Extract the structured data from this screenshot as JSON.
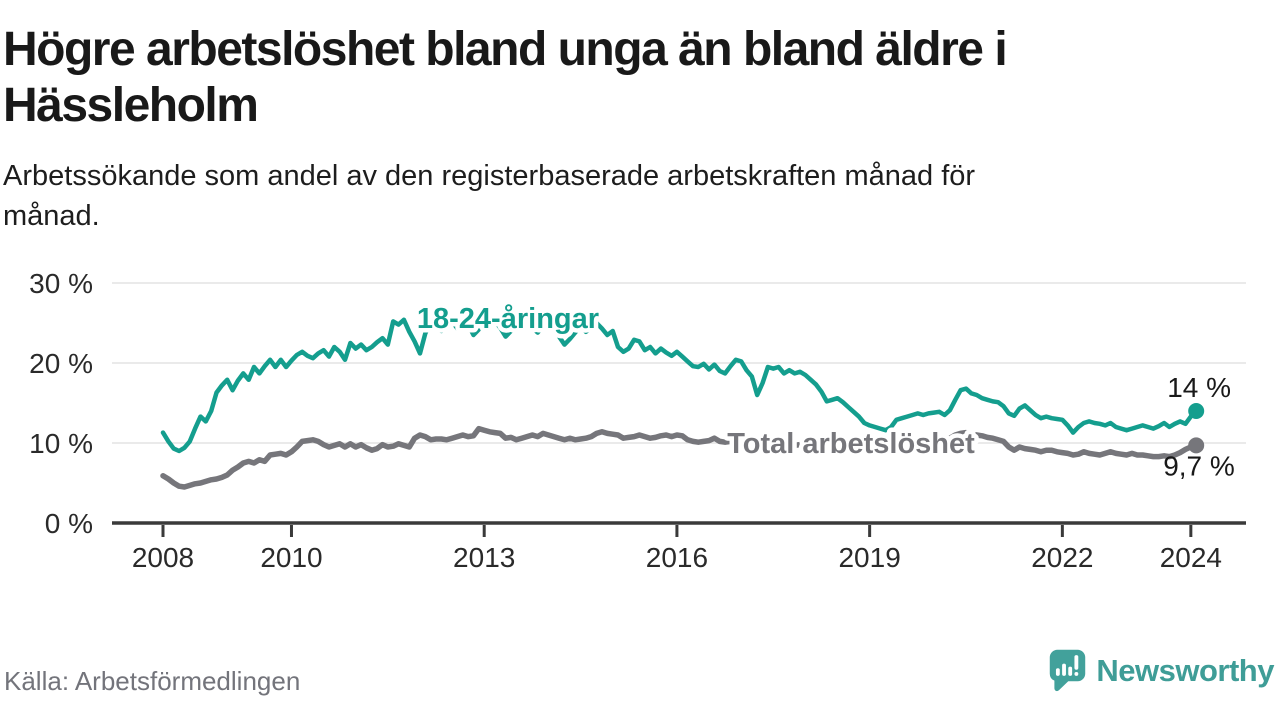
{
  "header": {
    "title_lines": [
      "Högre arbetslöshet bland unga än bland äldre i",
      "Hässleholm"
    ],
    "subtitle_lines": [
      "Arbetssökande som andel av den registerbaserade arbetskraften månad för",
      "månad."
    ]
  },
  "footer": {
    "source": "Källa: Arbetsförmedlingen",
    "brand_name": "Newsworthy"
  },
  "colors": {
    "young_line": "#149e8e",
    "total_line": "#76767b",
    "grid": "#e4e4e4",
    "axis": "#3a3a3a",
    "tick_text": "#2a2a2a",
    "value_label_text": "#191919",
    "brand_teal": "#42a19b",
    "source_text": "#73747b"
  },
  "chart_data": {
    "type": "line",
    "title": "Högre arbetslöshet bland unga än bland äldre i Hässleholm",
    "subtitle": "Arbetssökande som andel av den registerbaserade arbetskraften månad för månad.",
    "x_unit": "month",
    "x_start": "2008-01",
    "x_end": "2024-02",
    "x_tick_years": [
      2008,
      2010,
      2013,
      2016,
      2019,
      2022,
      2024
    ],
    "y_ticks": [
      0,
      10,
      20,
      30
    ],
    "y_tick_labels": [
      "0 %",
      "10 %",
      "20 %",
      "30 %"
    ],
    "ylim": [
      0,
      32
    ],
    "grid": "horizontal",
    "legend_position": "inline-labels",
    "source": "Källa: Arbetsförmedlingen",
    "series": [
      {
        "name": "18-24-åringar",
        "color": "#149e8e",
        "end_label": "14 %",
        "end_value": 14.0,
        "label_pos": {
          "year": 2013.37,
          "value": 25.6
        },
        "end_label_offset": [
          -29,
          -14
        ],
        "values": [
          11.3,
          10.2,
          9.3,
          9.0,
          9.4,
          10.2,
          11.8,
          13.3,
          12.7,
          14.0,
          16.3,
          17.2,
          17.9,
          16.6,
          17.8,
          18.7,
          17.9,
          19.5,
          18.7,
          19.6,
          20.4,
          19.5,
          20.4,
          19.5,
          20.3,
          21.0,
          21.4,
          20.9,
          20.6,
          21.2,
          21.6,
          20.8,
          22.0,
          21.4,
          20.4,
          22.5,
          21.8,
          22.3,
          21.6,
          22.0,
          22.6,
          23.1,
          22.3,
          25.2,
          24.8,
          25.4,
          23.9,
          22.7,
          21.2,
          23.7,
          25.0,
          24.4,
          24.0,
          24.6,
          25.2,
          24.3,
          25.4,
          24.8,
          23.5,
          24.2,
          25.3,
          25.8,
          25.2,
          24.4,
          23.3,
          24.0,
          24.8,
          24.2,
          25.0,
          24.4,
          23.8,
          24.6,
          25.4,
          24.8,
          23.3,
          22.3,
          23.0,
          23.8,
          24.6,
          23.9,
          24.4,
          25.0,
          24.3,
          23.5,
          24.0,
          22.0,
          21.4,
          21.8,
          22.9,
          22.7,
          21.6,
          22.0,
          21.2,
          21.8,
          21.3,
          20.9,
          21.4,
          20.8,
          20.2,
          19.6,
          19.5,
          19.9,
          19.2,
          19.8,
          19.0,
          18.7,
          19.6,
          20.4,
          20.2,
          19.1,
          18.3,
          16.0,
          17.5,
          19.5,
          19.3,
          19.5,
          18.7,
          19.1,
          18.7,
          18.9,
          18.5,
          17.9,
          17.3,
          16.4,
          15.2,
          15.4,
          15.6,
          15.1,
          14.5,
          13.9,
          13.3,
          12.5,
          12.2,
          12.0,
          11.8,
          11.6,
          12.0,
          12.9,
          13.1,
          13.3,
          13.5,
          13.7,
          13.5,
          13.7,
          13.8,
          13.9,
          13.5,
          14.1,
          15.4,
          16.6,
          16.8,
          16.2,
          16.0,
          15.6,
          15.4,
          15.2,
          15.1,
          14.6,
          13.7,
          13.4,
          14.3,
          14.7,
          14.1,
          13.5,
          13.1,
          13.3,
          13.1,
          13.0,
          12.9,
          12.2,
          11.3,
          12.0,
          12.5,
          12.7,
          12.5,
          12.4,
          12.2,
          12.5,
          12.0,
          11.8,
          11.6,
          11.8,
          12.0,
          12.2,
          12.0,
          11.8,
          12.1,
          12.5,
          12.0,
          12.4,
          12.7,
          12.4,
          13.3,
          14.0
        ]
      },
      {
        "name": "Total arbetslöshet",
        "color": "#76767b",
        "end_label": "9,7 %",
        "end_value": 9.7,
        "label_pos": {
          "year": 2018.71,
          "value": 10.0
        },
        "end_label_offset": [
          -33,
          30
        ],
        "values": [
          5.9,
          5.5,
          5.0,
          4.6,
          4.5,
          4.7,
          4.9,
          5.0,
          5.2,
          5.4,
          5.5,
          5.7,
          6.0,
          6.6,
          7.0,
          7.5,
          7.7,
          7.5,
          7.9,
          7.7,
          8.5,
          8.6,
          8.7,
          8.5,
          8.9,
          9.5,
          10.2,
          10.3,
          10.4,
          10.2,
          9.8,
          9.5,
          9.7,
          9.9,
          9.5,
          9.9,
          9.5,
          9.8,
          9.4,
          9.1,
          9.3,
          9.8,
          9.5,
          9.6,
          9.9,
          9.7,
          9.5,
          10.6,
          11.0,
          10.8,
          10.4,
          10.5,
          10.5,
          10.4,
          10.6,
          10.8,
          11.0,
          10.8,
          10.9,
          11.8,
          11.6,
          11.4,
          11.3,
          11.2,
          10.6,
          10.7,
          10.4,
          10.6,
          10.8,
          11.0,
          10.8,
          11.2,
          11.0,
          10.8,
          10.6,
          10.4,
          10.6,
          10.4,
          10.5,
          10.6,
          10.8,
          11.2,
          11.4,
          11.2,
          11.1,
          11.0,
          10.6,
          10.7,
          10.8,
          11.0,
          10.8,
          10.6,
          10.7,
          10.9,
          11.0,
          10.8,
          11.0,
          10.9,
          10.4,
          10.2,
          10.1,
          10.2,
          10.3,
          10.6,
          10.2,
          10.1,
          10.2,
          10.3,
          10.2,
          10.0,
          9.9,
          9.7,
          9.8,
          10.0,
          9.9,
          10.0,
          9.8,
          9.9,
          9.7,
          9.8,
          9.7,
          9.6,
          9.5,
          9.4,
          9.3,
          9.4,
          9.5,
          9.4,
          9.3,
          9.2,
          9.3,
          9.4,
          9.4,
          9.3,
          9.2,
          9.3,
          9.4,
          9.5,
          9.6,
          9.5,
          9.6,
          9.7,
          9.8,
          9.9,
          9.9,
          10.0,
          10.2,
          10.6,
          11.0,
          11.2,
          11.3,
          11.1,
          11.0,
          10.9,
          10.7,
          10.6,
          10.4,
          10.2,
          9.5,
          9.1,
          9.5,
          9.3,
          9.2,
          9.1,
          8.9,
          9.1,
          9.1,
          8.9,
          8.8,
          8.7,
          8.5,
          8.6,
          8.9,
          8.7,
          8.6,
          8.5,
          8.7,
          8.9,
          8.7,
          8.6,
          8.5,
          8.7,
          8.5,
          8.5,
          8.4,
          8.3,
          8.3,
          8.4,
          8.3,
          8.5,
          8.8,
          9.2,
          9.5,
          9.7
        ]
      }
    ]
  }
}
